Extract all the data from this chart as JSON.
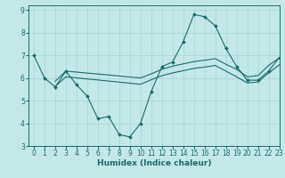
{
  "xlabel": "Humidex (Indice chaleur)",
  "xlim": [
    -0.5,
    23
  ],
  "ylim": [
    3,
    9.2
  ],
  "yticks": [
    3,
    4,
    5,
    6,
    7,
    8,
    9
  ],
  "xticks": [
    0,
    1,
    2,
    3,
    4,
    5,
    6,
    7,
    8,
    9,
    10,
    11,
    12,
    13,
    14,
    15,
    16,
    17,
    18,
    19,
    20,
    21,
    22,
    23
  ],
  "bg_color": "#c2e8e8",
  "line_color": "#1a6b6b",
  "grid_color": "#a8d8d8",
  "main_line": {
    "x": [
      0,
      1,
      2,
      3,
      4,
      5,
      6,
      7,
      8,
      9,
      10,
      11,
      12,
      13,
      14,
      15,
      16,
      17,
      18,
      19,
      20,
      21,
      22,
      23
    ],
    "y": [
      7.0,
      6.0,
      5.6,
      6.3,
      5.7,
      5.2,
      4.2,
      4.3,
      3.5,
      3.4,
      4.0,
      5.4,
      6.5,
      6.7,
      7.6,
      8.8,
      8.7,
      8.3,
      7.3,
      6.5,
      5.9,
      5.9,
      6.3,
      6.9
    ]
  },
  "upper_line": {
    "x": [
      2,
      3,
      10,
      11,
      12,
      13,
      14,
      15,
      16,
      17,
      18,
      19,
      20,
      21,
      22,
      23
    ],
    "y": [
      5.85,
      6.3,
      6.0,
      6.18,
      6.38,
      6.52,
      6.62,
      6.72,
      6.78,
      6.85,
      6.6,
      6.38,
      6.05,
      6.1,
      6.55,
      6.88
    ]
  },
  "lower_line": {
    "x": [
      2,
      3,
      10,
      11,
      12,
      13,
      14,
      15,
      16,
      17,
      18,
      19,
      20,
      21,
      22,
      23
    ],
    "y": [
      5.62,
      6.05,
      5.72,
      5.92,
      6.1,
      6.22,
      6.32,
      6.42,
      6.48,
      6.55,
      6.3,
      6.05,
      5.78,
      5.82,
      6.22,
      6.58
    ]
  },
  "tick_fontsize": 5.5,
  "xlabel_fontsize": 6.5
}
